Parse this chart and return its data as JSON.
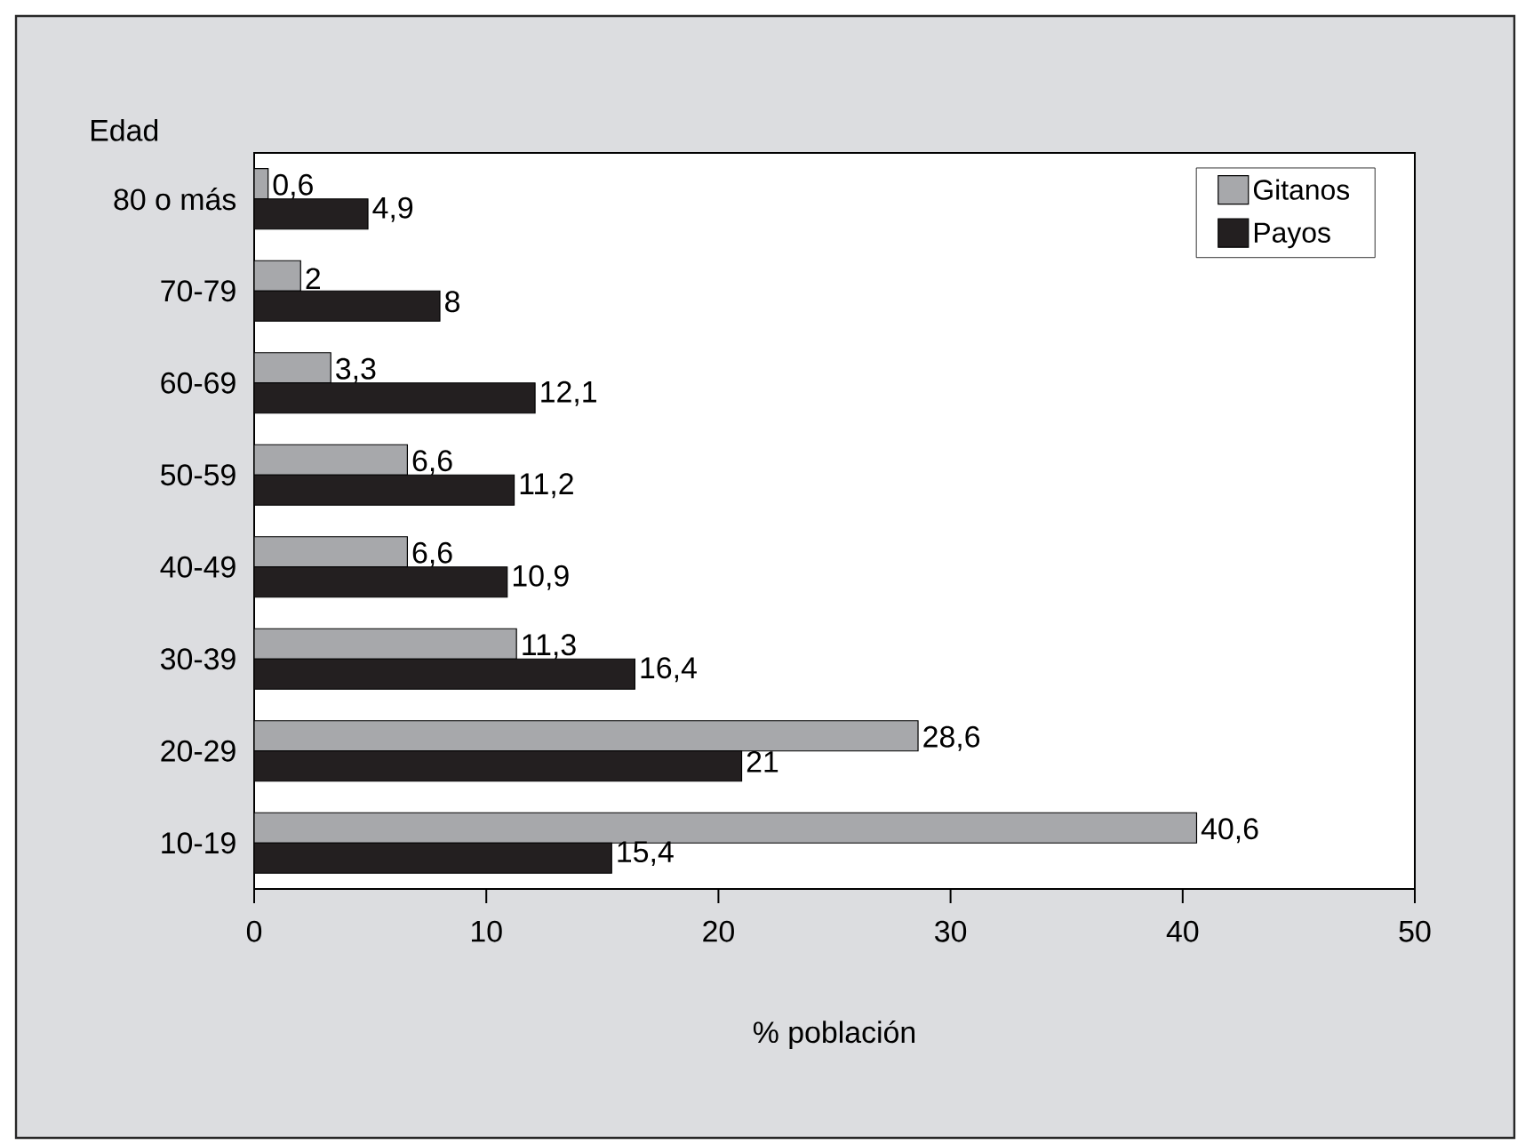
{
  "chart_data": {
    "type": "bar",
    "orientation": "horizontal",
    "xlabel": "% población",
    "ylabel": "Edad",
    "categories": [
      "80 o más",
      "70-79",
      "60-69",
      "50-59",
      "40-49",
      "30-39",
      "20-29",
      "10-19"
    ],
    "series": [
      {
        "name": "Gitanos",
        "color": "#a7a8ab",
        "values": [
          0.6,
          2,
          3.3,
          6.6,
          6.6,
          11.3,
          28.6,
          40.6
        ],
        "value_labels": [
          "0,6",
          "2",
          "3,3",
          "6,6",
          "6,6",
          "11,3",
          "28,6",
          "40,6"
        ]
      },
      {
        "name": "Payos",
        "color": "#231f20",
        "values": [
          4.9,
          8,
          12.1,
          11.2,
          10.9,
          16.4,
          21,
          15.4
        ],
        "value_labels": [
          "4,9",
          "8",
          "12,1",
          "11,2",
          "10,9",
          "16,4",
          "21",
          "15,4"
        ]
      }
    ],
    "xlim": [
      0,
      50
    ],
    "xticks": [
      0,
      10,
      20,
      30,
      40,
      50
    ],
    "legend": "top right",
    "grid": false
  }
}
